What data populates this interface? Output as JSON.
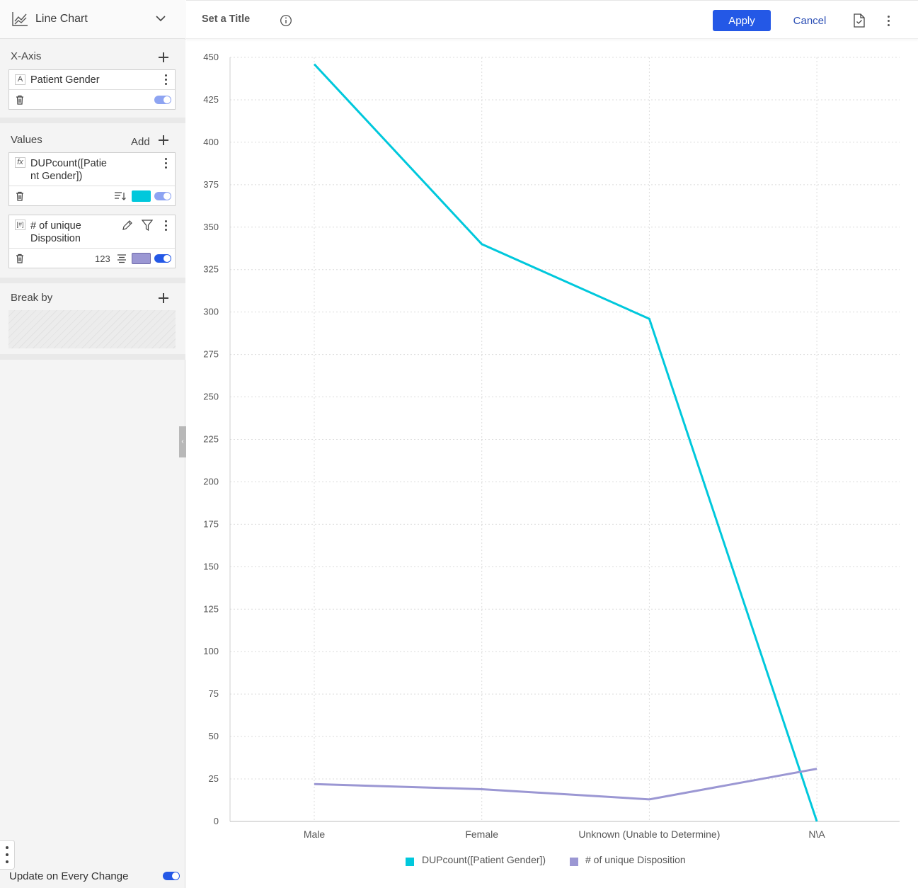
{
  "sidebar": {
    "chart_type": "Line Chart",
    "x_axis": {
      "title": "X-Axis",
      "field": {
        "type_badge": "A",
        "name": "Patient Gender",
        "enabled": true
      }
    },
    "values": {
      "title": "Values",
      "add_label": "Add",
      "fields": [
        {
          "type_badge": "fx",
          "name_line1": "DUPcount([Patie",
          "name_line2": "nt Gender])",
          "color": "#00c8dc",
          "enabled": true
        },
        {
          "type_badge": "[#]",
          "name_line1": "# of unique",
          "name_line2": "Disposition",
          "number_format": "123",
          "color": "#9b97d3",
          "enabled": true
        }
      ]
    },
    "break_by": {
      "title": "Break by"
    },
    "update_on_change": {
      "label": "Update on Every Change",
      "enabled": true
    }
  },
  "header": {
    "title": "Set a Title",
    "apply_label": "Apply",
    "cancel_label": "Cancel"
  },
  "colors": {
    "accent": "#2458e6",
    "series1": "#00c8dc",
    "series2": "#9b97d3"
  },
  "chart_data": {
    "type": "line",
    "categories": [
      "Male",
      "Female",
      "Unknown (Unable to Determine)",
      "N\\A"
    ],
    "series": [
      {
        "name": "DUPcount([Patient Gender])",
        "values": [
          446,
          340,
          296,
          0
        ],
        "color": "#00c8dc"
      },
      {
        "name": "# of unique Disposition",
        "values": [
          22,
          19,
          13,
          31
        ],
        "color": "#9b97d3"
      }
    ],
    "y_ticks": [
      0,
      25,
      50,
      75,
      100,
      125,
      150,
      175,
      200,
      225,
      250,
      275,
      300,
      325,
      350,
      375,
      400,
      425,
      450
    ],
    "ylim": [
      0,
      450
    ],
    "grid": true,
    "legend_position": "bottom"
  }
}
